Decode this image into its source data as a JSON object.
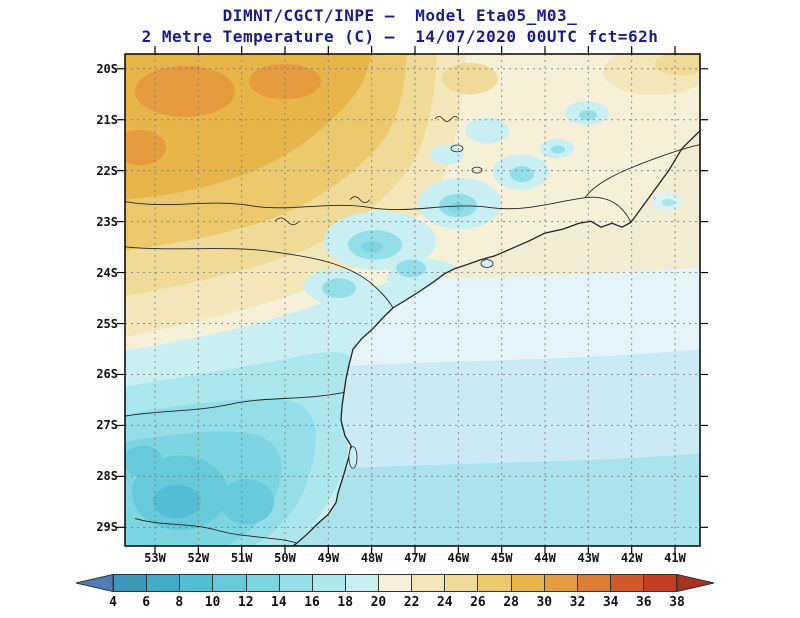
{
  "title": {
    "line1": "DIMNT/CGCT/INPE —  Model Eta05_M03_",
    "line2": "2 Metre Temperature (C) —  14/07/2020 00UTC fct=62h"
  },
  "colors": {
    "title_text": "#1b1b8e",
    "axis_text": "#111111",
    "map_frame": "#000000"
  },
  "map": {
    "lat_labels": [
      "20S",
      "21S",
      "22S",
      "23S",
      "24S",
      "25S",
      "26S",
      "27S",
      "28S",
      "29S"
    ],
    "lon_labels": [
      "53W",
      "52W",
      "51W",
      "50W",
      "49W",
      "48W",
      "47W",
      "46W",
      "45W",
      "44W",
      "43W",
      "42W",
      "41W"
    ],
    "gridline_style": "dashed"
  },
  "colorbar": {
    "tick_labels": [
      "4",
      "6",
      "8",
      "10",
      "12",
      "14",
      "16",
      "18",
      "20",
      "22",
      "24",
      "26",
      "28",
      "30",
      "32",
      "34",
      "36",
      "38"
    ],
    "segment_colors": [
      "#3E96B8",
      "#41ABC8",
      "#53BDD3",
      "#66CADB",
      "#7CD5E1",
      "#93DEE8",
      "#ACE7EE",
      "#C9EFF3",
      "#F6F0D8",
      "#F3E7BA",
      "#F0DA97",
      "#EDC96D",
      "#E8B54A",
      "#E49C3F",
      "#DD7C33",
      "#D0582B",
      "#C23D24"
    ],
    "left_arrow_color": "#4D7EB8",
    "right_arrow_color": "#A93122"
  },
  "chart_data": {
    "type": "heatmap",
    "title": "2 Metre Temperature (C)",
    "model": "Eta05_M03_",
    "institution": "DIMNT/CGCT/INPE",
    "valid": "14/07/2020 00UTC fct=62h",
    "units": "C",
    "scale_min": 4,
    "scale_max": 38,
    "scale_step": 2,
    "lat_range": [
      "20S",
      "29S"
    ],
    "lon_range": [
      "53W",
      "41W"
    ],
    "regions": [
      {
        "area": "northwest interior (top-left of map)",
        "approx_value_c": "26-32"
      },
      {
        "area": "north-central highlands patches",
        "approx_value_c": "14-18"
      },
      {
        "area": "central coast mountains (cyan patches)",
        "approx_value_c": "14-18"
      },
      {
        "area": "southern land / southwest corner",
        "approx_value_c": "8-14"
      },
      {
        "area": "ocean north of 24S",
        "approx_value_c": "20-22"
      },
      {
        "area": "ocean band 24S-26S (palest)",
        "approx_value_c": "18-20"
      },
      {
        "area": "ocean 26S-28S",
        "approx_value_c": "16-18"
      },
      {
        "area": "ocean south of 28S",
        "approx_value_c": "14-16"
      }
    ]
  }
}
